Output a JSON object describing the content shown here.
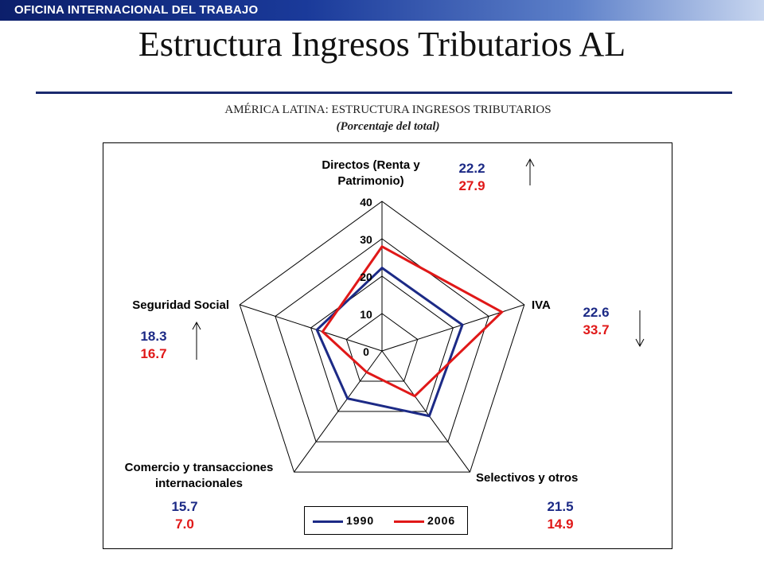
{
  "header": {
    "banner_text": "OFICINA INTERNACIONAL DEL TRABAJO"
  },
  "slide": {
    "title": "Estructura Ingresos Tributarios AL"
  },
  "colors": {
    "series_1990": "#1c2a86",
    "series_2006": "#e01818",
    "banner": "#0c1f6b"
  },
  "chart_data": {
    "type": "radar",
    "title": "AMÉRICA LATINA: ESTRUCTURA INGRESOS TRIBUTARIOS",
    "subtitle": "(Porcentaje del total)",
    "rmin": 0,
    "rmax": 40,
    "ticks": [
      0,
      10,
      20,
      30,
      40
    ],
    "tick_labels": [
      "0",
      "10",
      "20",
      "30",
      "40"
    ],
    "grid": true,
    "legend": "bottom",
    "axes": [
      {
        "label": [
          "Directos (Renta y",
          "Patrimonio)"
        ],
        "v1990": "22.2",
        "v2006": "27.9",
        "trend": "up"
      },
      {
        "label": [
          "IVA"
        ],
        "v1990": "22.6",
        "v2006": "33.7",
        "trend": "down"
      },
      {
        "label": [
          "Selectivos y otros"
        ],
        "v1990": "21.5",
        "v2006": "14.9",
        "trend": ""
      },
      {
        "label": [
          "Comercio y transacciones",
          "internacionales"
        ],
        "v1990": "15.7",
        "v2006": "7.0",
        "trend": ""
      },
      {
        "label": [
          "Seguridad Social"
        ],
        "v1990": "18.3",
        "v2006": "16.7",
        "trend": "up"
      }
    ],
    "series": [
      {
        "name": "1990",
        "values": [
          22.2,
          22.6,
          21.5,
          15.7,
          18.3
        ]
      },
      {
        "name": "2006",
        "values": [
          27.9,
          33.7,
          14.9,
          7.0,
          16.7
        ]
      }
    ]
  }
}
